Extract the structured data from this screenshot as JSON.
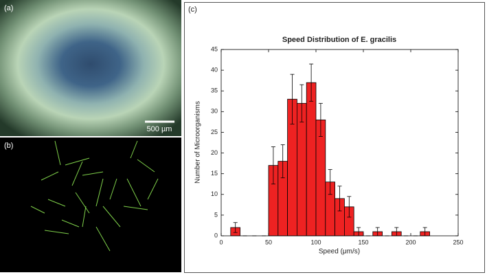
{
  "panels": {
    "a": "(a)",
    "b": "(b)",
    "c": "(c)",
    "scale_bar": "500 µm"
  },
  "chart_data": {
    "type": "histogram",
    "title": "Speed Distribution of E. gracilis",
    "x_label": "Speed (μm/s)",
    "y_label": "Number of Microorganisms",
    "bins": [
      10,
      20,
      30,
      40,
      50,
      60,
      70,
      80,
      90,
      100,
      110,
      120,
      130,
      140,
      150,
      160,
      170,
      180,
      190,
      200,
      210,
      220
    ],
    "counts": [
      2,
      0,
      0,
      0,
      17,
      18,
      33,
      32,
      37,
      28,
      13,
      9,
      7,
      1,
      0,
      1,
      0,
      1,
      0,
      0,
      1
    ],
    "errors": [
      1.2,
      0,
      0,
      0,
      4.5,
      4,
      6,
      4.5,
      4.5,
      4,
      3,
      3,
      2.5,
      1,
      0,
      1,
      0,
      1,
      0,
      0,
      1
    ],
    "color": "#ee2222",
    "error_color": "#000000",
    "xlim": [
      0,
      250
    ],
    "xticks": [
      0,
      50,
      100,
      150,
      200,
      250
    ],
    "ylim": [
      0,
      45
    ],
    "yticks": [
      0,
      5,
      10,
      15,
      20,
      25,
      30,
      35,
      40,
      45
    ]
  }
}
